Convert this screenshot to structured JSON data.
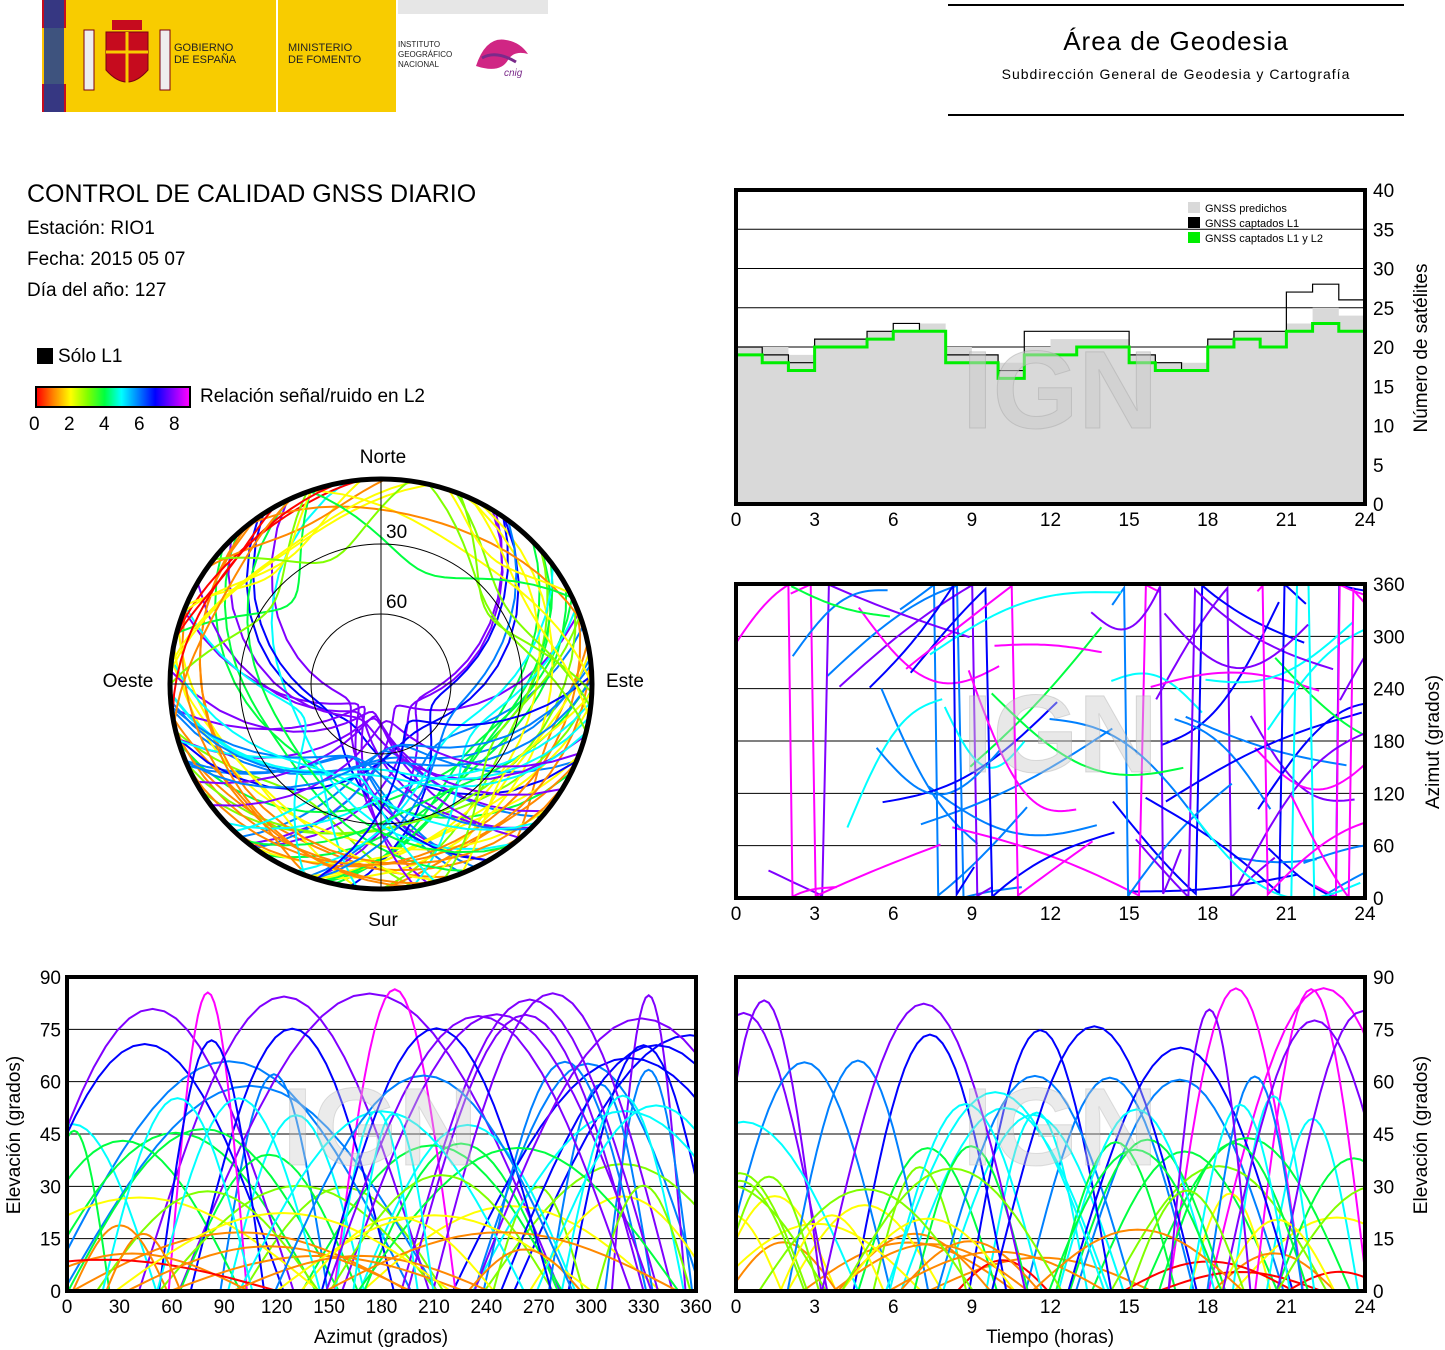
{
  "header": {
    "gov_line1": "GOBIERNO",
    "gov_line2": "DE ESPAÑA",
    "min_line1": "MINISTERIO",
    "min_line2": "DE FOMENTO",
    "ign_line1": "INSTITUTO",
    "ign_line2": "GEOGRÁFICO",
    "ign_line3": "NACIONAL",
    "ign_brand": "cnig",
    "area_title": "Área de Geodesia",
    "area_subtitle": "Subdirección General de Geodesia y Cartografía"
  },
  "info": {
    "title": "CONTROL DE CALIDAD GNSS DIARIO",
    "station": "Estación: RIO1",
    "date": "Fecha: 2015 05 07",
    "doy": "Día del año: 127"
  },
  "legend": {
    "l1_only": "Sólo L1",
    "snr_label": "Relación señal/ruido en L2",
    "snr_ticks": [
      "0",
      "2",
      "4",
      "6",
      "8"
    ],
    "colors": [
      "#ff0000",
      "#ff8800",
      "#ffff00",
      "#80ff00",
      "#00ff40",
      "#00ffff",
      "#0080ff",
      "#0000ff",
      "#8000ff",
      "#ff00ff"
    ]
  },
  "watermark": "IGN",
  "chart_data": [
    {
      "id": "skyplot",
      "type": "scatter",
      "compass": {
        "north": "Norte",
        "south": "Sur",
        "west": "Oeste",
        "east": "Este"
      },
      "rings": [
        "30",
        "60"
      ]
    },
    {
      "id": "satcount",
      "type": "area",
      "x_ticks": [
        "0",
        "3",
        "6",
        "9",
        "12",
        "15",
        "18",
        "21",
        "24"
      ],
      "y_ticks": [
        "0",
        "5",
        "10",
        "15",
        "20",
        "25",
        "30",
        "35",
        "40"
      ],
      "ylabel": "Número de satélites",
      "xlim": [
        0,
        24
      ],
      "ylim": [
        0,
        40
      ],
      "legend": [
        "GNSS predichos",
        "GNSS captados L1",
        "GNSS captados L1 y L2"
      ],
      "series_colors": [
        "#d9d9d9",
        "#000000",
        "#00ee00"
      ],
      "predicted": {
        "x": [
          0,
          1,
          2,
          3,
          4,
          5,
          6,
          7,
          8,
          9,
          10,
          11,
          12,
          13,
          14,
          15,
          16,
          17,
          18,
          19,
          20,
          21,
          22,
          23,
          24
        ],
        "y": [
          20,
          20,
          19,
          21,
          21,
          22,
          22,
          23,
          20,
          19,
          18,
          20,
          21,
          21,
          21,
          19,
          18,
          18,
          21,
          22,
          22,
          23,
          25,
          24,
          17
        ]
      },
      "l1": {
        "x": [
          0,
          1,
          2,
          3,
          4,
          5,
          6,
          7,
          8,
          9,
          10,
          11,
          12,
          13,
          14,
          15,
          16,
          17,
          18,
          19,
          20,
          21,
          22,
          23,
          24
        ],
        "y": [
          20,
          19,
          18,
          21,
          21,
          22,
          23,
          22,
          19,
          19,
          17,
          22,
          22,
          22,
          22,
          19,
          18,
          17,
          21,
          22,
          22,
          27,
          28,
          26,
          20
        ]
      },
      "l1l2": {
        "x": [
          0,
          1,
          2,
          3,
          4,
          5,
          6,
          7,
          8,
          9,
          10,
          11,
          12,
          13,
          14,
          15,
          16,
          17,
          18,
          19,
          20,
          21,
          22,
          23,
          24
        ],
        "y": [
          19,
          18,
          17,
          20,
          20,
          21,
          22,
          22,
          18,
          18,
          16,
          19,
          19,
          20,
          20,
          18,
          17,
          17,
          20,
          21,
          20,
          22,
          23,
          22,
          18
        ]
      }
    },
    {
      "id": "azimuth_time",
      "type": "scatter",
      "x_ticks": [
        "0",
        "3",
        "6",
        "9",
        "12",
        "15",
        "18",
        "21",
        "24"
      ],
      "y_ticks": [
        "0",
        "60",
        "120",
        "180",
        "240",
        "300",
        "360"
      ],
      "ylabel": "Azimut (grados)",
      "xlim": [
        0,
        24
      ],
      "ylim": [
        0,
        360
      ]
    },
    {
      "id": "elev_azimuth",
      "type": "scatter",
      "x_ticks": [
        "0",
        "30",
        "60",
        "90",
        "120",
        "150",
        "180",
        "210",
        "240",
        "270",
        "300",
        "330",
        "360"
      ],
      "y_ticks": [
        "0",
        "15",
        "30",
        "45",
        "60",
        "75",
        "90"
      ],
      "xlabel": "Azimut (grados)",
      "ylabel": "Elevación (grados)",
      "xlim": [
        0,
        360
      ],
      "ylim": [
        0,
        90
      ]
    },
    {
      "id": "elev_time",
      "type": "scatter",
      "x_ticks": [
        "0",
        "3",
        "6",
        "9",
        "12",
        "15",
        "18",
        "21",
        "24"
      ],
      "y_ticks": [
        "0",
        "15",
        "30",
        "45",
        "60",
        "75",
        "90"
      ],
      "xlabel": "Tiempo (horas)",
      "ylabel": "Elevación (grados)",
      "xlim": [
        0,
        24
      ],
      "ylim": [
        0,
        90
      ]
    }
  ]
}
